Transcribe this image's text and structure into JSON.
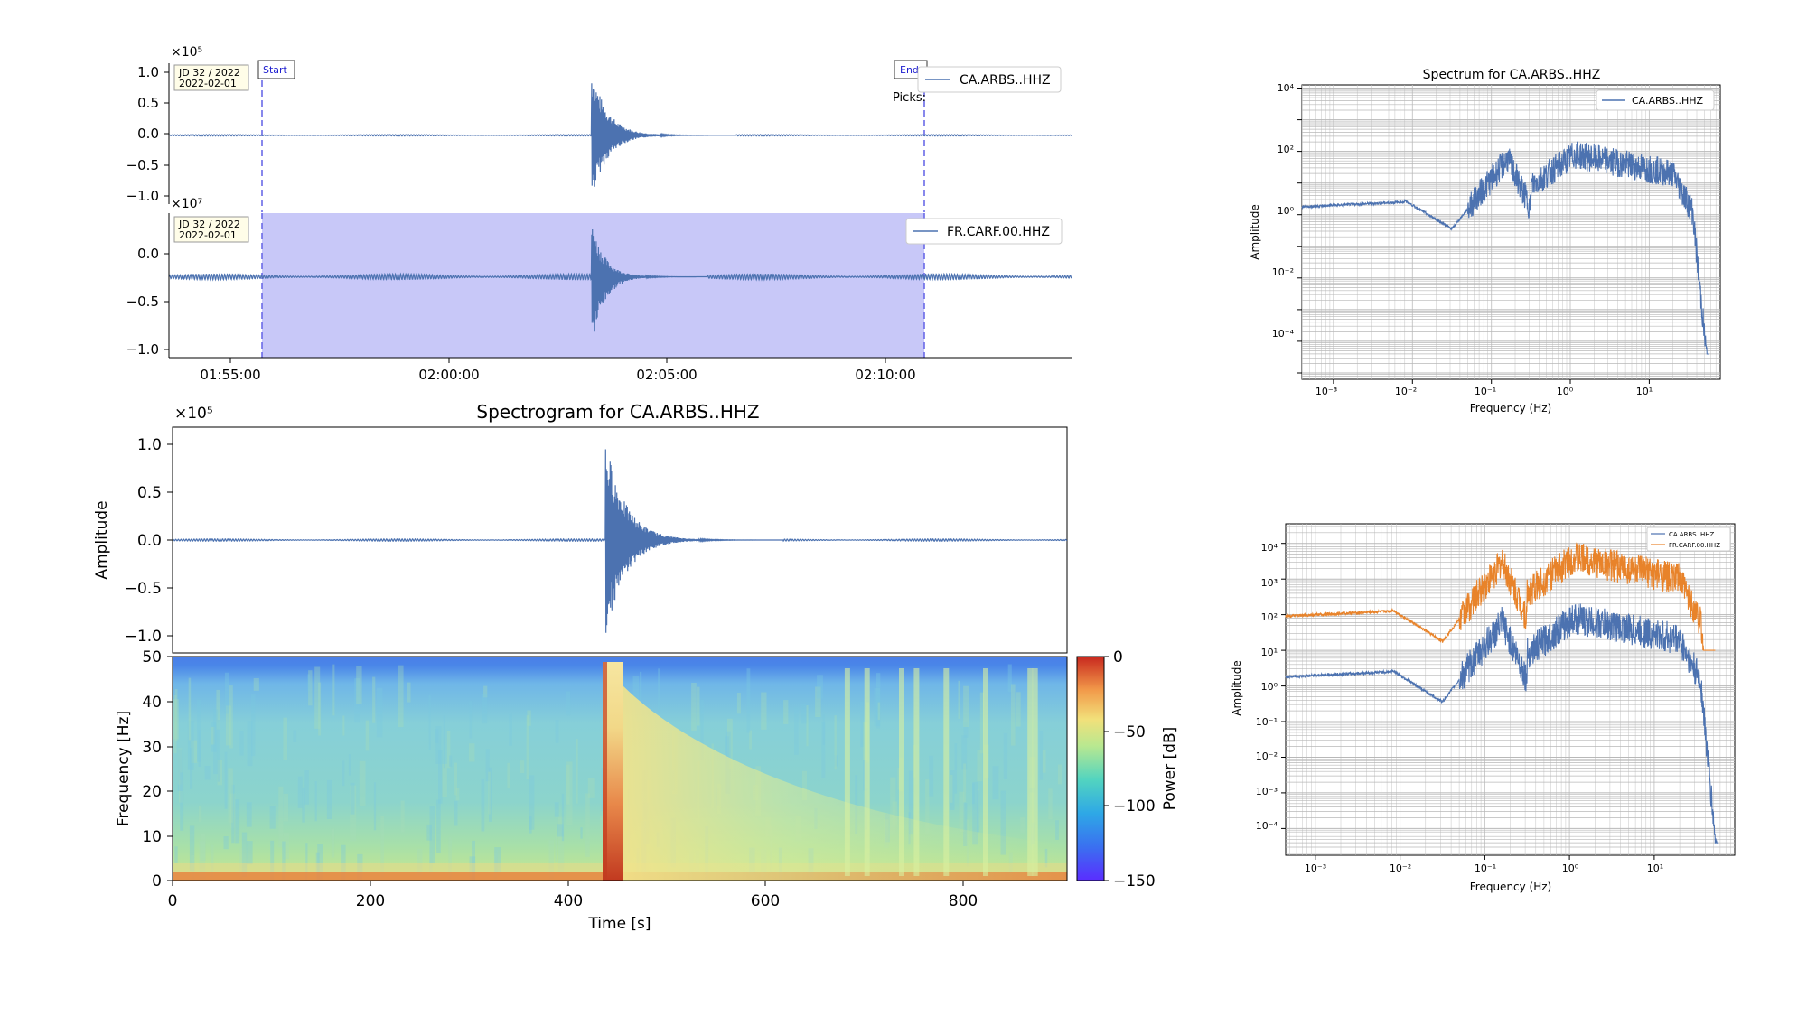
{
  "colors": {
    "trace_blue": "#4c72b0",
    "trace_orange": "#e8832a",
    "selection_fill": "#c8c8f8",
    "marker_line": "#6a6ae8",
    "date_box_fill": "#fffde8",
    "axis": "#000000",
    "grid": "#bfbfbf"
  },
  "chart_data": [
    {
      "id": "waveform-ca",
      "type": "line",
      "multiplier": "×10⁵",
      "legend": {
        "label": "CA.ARBS..HHZ",
        "placement": "top-right"
      },
      "date_box": {
        "line1": "JD 32 / 2022",
        "line2": "2022-02-01"
      },
      "markers": [
        {
          "label": "Start",
          "time": "01:55:50"
        },
        {
          "label": "End",
          "time": "02:10:55"
        }
      ],
      "picks_label": "Picks:",
      "yticks": [
        "1.0",
        "0.5",
        "0.0",
        "−0.5",
        "−1.0"
      ],
      "ylim": [
        -1.05,
        1.1
      ],
      "x": {
        "start": "01:53:30",
        "end": "02:14:20"
      },
      "event": {
        "time": "02:03:15",
        "peak": 1.05,
        "trough": -1.0
      }
    },
    {
      "id": "waveform-fr",
      "type": "line",
      "multiplier": "×10⁷",
      "legend": {
        "label": "FR.CARF.00.HHZ",
        "placement": "top-right"
      },
      "date_box": {
        "line1": "JD 32 / 2022",
        "line2": "2022-02-01"
      },
      "selection": {
        "start": "01:55:50",
        "end": "02:10:55"
      },
      "yticks": [
        "0.0",
        "−0.5",
        "−1.0"
      ],
      "ylim": [
        -1.1,
        0.42
      ],
      "baseline": -0.25,
      "xticks": [
        "01:55:00",
        "02:00:00",
        "02:05:00",
        "02:10:00"
      ],
      "event": {
        "time": "02:03:15",
        "peak": 0.35,
        "trough": -1.02
      }
    },
    {
      "id": "spectrogram-waveform",
      "type": "line",
      "title": "Spectrogram for CA.ARBS..HHZ",
      "multiplier": "×10⁵",
      "ylabel": "Amplitude",
      "yticks": [
        "1.0",
        "0.5",
        "0.0",
        "−0.5",
        "−1.0"
      ],
      "ylim": [
        -1.2,
        1.2
      ],
      "xlim": [
        0,
        905
      ],
      "event": {
        "time_s": 438,
        "peak": 1.08,
        "trough": -1.05
      }
    },
    {
      "id": "spectrogram",
      "type": "heatmap",
      "xlabel": "Time [s]",
      "ylabel": "Frequency [Hz]",
      "xticks": [
        "0",
        "200",
        "400",
        "600",
        "800"
      ],
      "yticks": [
        "0",
        "10",
        "20",
        "30",
        "40",
        "50"
      ],
      "xlim": [
        0,
        905
      ],
      "ylim": [
        0,
        50
      ],
      "colorbar": {
        "label": "Power [dB]",
        "ticks": [
          "0",
          "−50",
          "−100",
          "−150"
        ],
        "range": [
          -150,
          0
        ]
      },
      "event_time_s": 435,
      "bright_bands_s": [
        680,
        700,
        735,
        750,
        780,
        820,
        865,
        870
      ]
    },
    {
      "id": "spectrum-single",
      "type": "line",
      "title": "Spectrum for CA.ARBS..HHZ",
      "xlabel": "Frequency (Hz)",
      "ylabel": "Amplitude",
      "xscale": "log",
      "yscale": "log",
      "xticks": [
        "10⁻³",
        "10⁻²",
        "10⁻¹",
        "10⁰",
        "10¹"
      ],
      "yticks": [
        "10⁴",
        "10²",
        "10⁰",
        "10⁻²",
        "10⁻⁴"
      ],
      "legend": {
        "label": "CA.ARBS..HHZ",
        "placement": "top-right"
      },
      "grid": true
    },
    {
      "id": "spectrum-compare",
      "type": "line",
      "xlabel": "Frequency (Hz)",
      "ylabel": "Amplitude",
      "xscale": "log",
      "yscale": "log",
      "xticks": [
        "10⁻³",
        "10⁻²",
        "10⁻¹",
        "10⁰",
        "10¹"
      ],
      "yticks": [
        "10⁴",
        "10³",
        "10²",
        "10¹",
        "10⁰",
        "10⁻¹",
        "10⁻²",
        "10⁻³",
        "10⁻⁴"
      ],
      "legend": {
        "entries": [
          "CA.ARBS..HHZ",
          "FR.CARF.00.HHZ"
        ],
        "placement": "top-right"
      },
      "grid": true
    }
  ]
}
